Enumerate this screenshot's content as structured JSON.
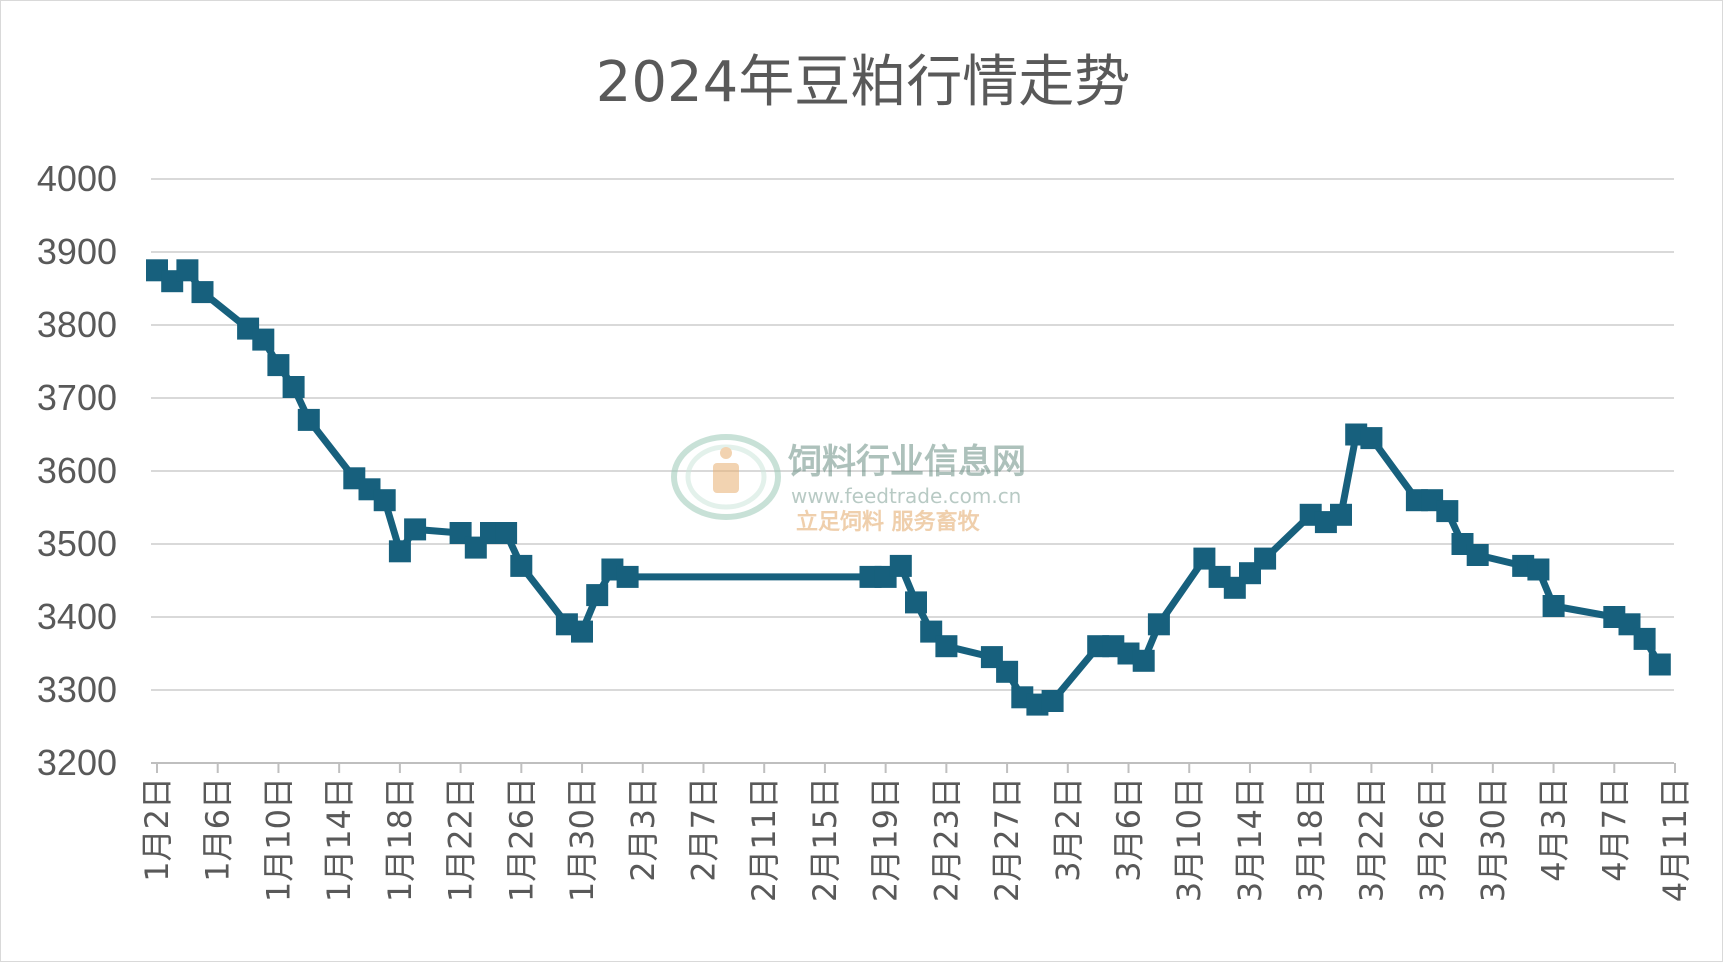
{
  "chart_data": {
    "type": "line",
    "title": "2024年豆粕行情走势",
    "xlabel": "",
    "ylabel": "",
    "ylim": [
      3200,
      4000
    ],
    "yticks": [
      3200,
      3300,
      3400,
      3500,
      3600,
      3700,
      3800,
      3900,
      4000
    ],
    "grid": true,
    "legend": "none",
    "x_tick_labels": [
      "1月2日",
      "1月6日",
      "1月10日",
      "1月14日",
      "1月18日",
      "1月22日",
      "1月26日",
      "1月30日",
      "2月3日",
      "2月7日",
      "2月11日",
      "2月15日",
      "2月19日",
      "2月23日",
      "2月27日",
      "3月2日",
      "3月6日",
      "3月10日",
      "3月14日",
      "3月18日",
      "3月22日",
      "3月26日",
      "3月30日",
      "4月3日",
      "4月7日",
      "4月11日"
    ],
    "colors": {
      "series": "#17607d",
      "grid": "#d9d9d9",
      "text": "#595959"
    },
    "series": [
      {
        "name": "",
        "points": [
          [
            "1月2日",
            3875
          ],
          [
            "1月3日",
            3860
          ],
          [
            "1月4日",
            3875
          ],
          [
            "1月5日",
            3845
          ],
          [
            "1月8日",
            3795
          ],
          [
            "1月9日",
            3780
          ],
          [
            "1月10日",
            3745
          ],
          [
            "1月11日",
            3715
          ],
          [
            "1月12日",
            3670
          ],
          [
            "1月15日",
            3590
          ],
          [
            "1月16日",
            3575
          ],
          [
            "1月17日",
            3560
          ],
          [
            "1月18日",
            3490
          ],
          [
            "1月19日",
            3520
          ],
          [
            "1月22日",
            3515
          ],
          [
            "1月23日",
            3495
          ],
          [
            "1月24日",
            3515
          ],
          [
            "1月25日",
            3515
          ],
          [
            "1月26日",
            3470
          ],
          [
            "1月29日",
            3390
          ],
          [
            "1月30日",
            3380
          ],
          [
            "1月31日",
            3430
          ],
          [
            "2月1日",
            3465
          ],
          [
            "2月2日",
            3455
          ],
          [
            "2月18日",
            3455
          ],
          [
            "2月19日",
            3455
          ],
          [
            "2月20日",
            3470
          ],
          [
            "2月21日",
            3420
          ],
          [
            "2月22日",
            3380
          ],
          [
            "2月23日",
            3360
          ],
          [
            "2月26日",
            3345
          ],
          [
            "2月27日",
            3325
          ],
          [
            "2月28日",
            3290
          ],
          [
            "2月29日",
            3280
          ],
          [
            "3月1日",
            3285
          ],
          [
            "3月4日",
            3360
          ],
          [
            "3月5日",
            3360
          ],
          [
            "3月6日",
            3350
          ],
          [
            "3月7日",
            3340
          ],
          [
            "3月8日",
            3390
          ],
          [
            "3月11日",
            3480
          ],
          [
            "3月12日",
            3455
          ],
          [
            "3月13日",
            3440
          ],
          [
            "3月14日",
            3460
          ],
          [
            "3月15日",
            3480
          ],
          [
            "3月18日",
            3540
          ],
          [
            "3月19日",
            3530
          ],
          [
            "3月20日",
            3540
          ],
          [
            "3月21日",
            3650
          ],
          [
            "3月22日",
            3645
          ],
          [
            "3月25日",
            3560
          ],
          [
            "3月26日",
            3560
          ],
          [
            "3月27日",
            3545
          ],
          [
            "3月28日",
            3500
          ],
          [
            "3月29日",
            3485
          ],
          [
            "4月1日",
            3470
          ],
          [
            "4月2日",
            3465
          ],
          [
            "4月3日",
            3415
          ],
          [
            "4月7日",
            3400
          ],
          [
            "4月8日",
            3390
          ],
          [
            "4月9日",
            3370
          ],
          [
            "4月10日",
            3335
          ]
        ]
      }
    ]
  },
  "watermark": {
    "name": "饲料行业信息网",
    "url": "www.feedtrade.com.cn",
    "slogan": "立足饲料    服务畜牧"
  }
}
